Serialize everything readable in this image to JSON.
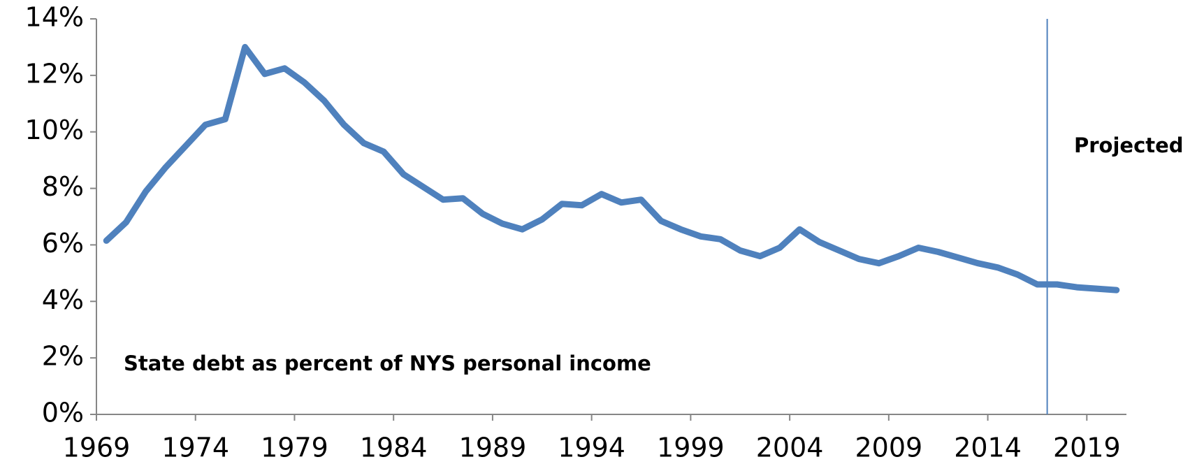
{
  "chart_data": {
    "type": "line",
    "annotations": [
      "State debt as percent of NYS personal income",
      "Projected"
    ],
    "categories": [
      "1969",
      null,
      null,
      null,
      null,
      "1974",
      null,
      null,
      null,
      null,
      "1979",
      null,
      null,
      null,
      null,
      "1984",
      null,
      null,
      null,
      null,
      "1989",
      null,
      null,
      null,
      null,
      "1994",
      null,
      null,
      null,
      null,
      "1999",
      null,
      null,
      null,
      null,
      "2004",
      null,
      null,
      null,
      null,
      "2009",
      null,
      null,
      null,
      null,
      "2014",
      null,
      null,
      null,
      null,
      "2019",
      null
    ],
    "series": [
      {
        "color": "#4f81bd",
        "values": [
          6.15,
          6.8,
          7.9,
          8.75,
          9.5,
          10.25,
          10.45,
          13.0,
          12.05,
          12.25,
          11.75,
          11.1,
          10.25,
          9.6,
          9.3,
          8.5,
          8.05,
          7.6,
          7.65,
          7.1,
          6.75,
          6.55,
          6.9,
          7.45,
          7.4,
          7.8,
          7.5,
          7.6,
          6.85,
          6.55,
          6.3,
          6.2,
          5.8,
          5.6,
          5.9,
          6.55,
          6.1,
          5.8,
          5.5,
          5.35,
          5.6,
          5.9,
          5.75,
          5.55,
          5.35,
          5.2,
          4.95,
          4.6,
          4.6,
          4.5,
          4.45,
          4.4
        ]
      }
    ],
    "ylim": [
      0,
      14
    ],
    "yticks": [
      {
        "value": 0,
        "label": "0%"
      },
      {
        "value": 2,
        "label": "2%"
      },
      {
        "value": 4,
        "label": "4%"
      },
      {
        "value": 6,
        "label": "6%"
      },
      {
        "value": 8,
        "label": "8%"
      },
      {
        "value": 10,
        "label": "10%"
      },
      {
        "value": 12,
        "label": "12%"
      },
      {
        "value": 14,
        "label": "14%"
      }
    ],
    "grid": false
  }
}
